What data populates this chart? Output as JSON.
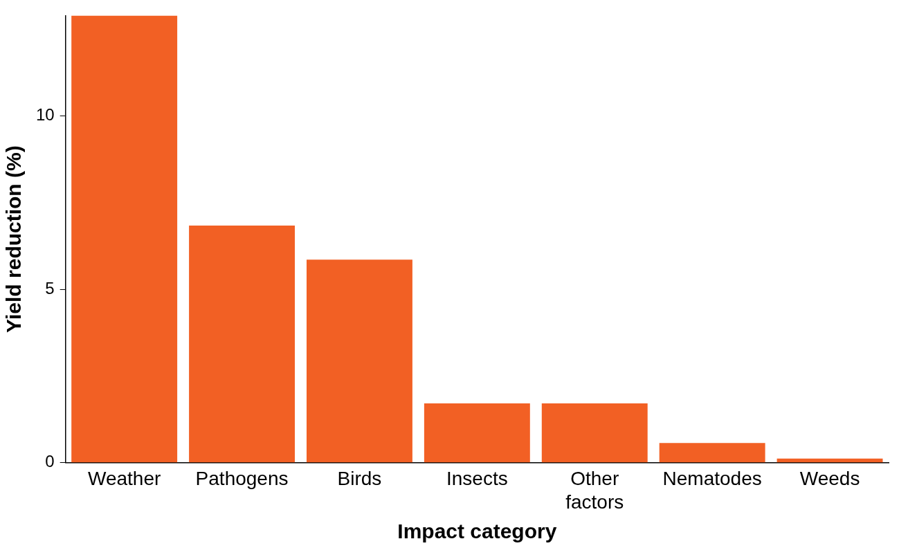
{
  "chart_data": {
    "type": "bar",
    "xlabel": "Impact category",
    "ylabel": "Yield reduction (%)",
    "categories": [
      "Weather",
      "Pathogens",
      "Birds",
      "Insects",
      "Other factors",
      "Nematodes",
      "Weeds"
    ],
    "values": [
      12.9,
      6.84,
      5.86,
      1.71,
      1.71,
      0.57,
      0.12
    ],
    "color": "#f26024",
    "ylim": [
      0,
      12.9
    ],
    "yticks": [
      0,
      5,
      10
    ],
    "grid": false,
    "legend": false
  }
}
